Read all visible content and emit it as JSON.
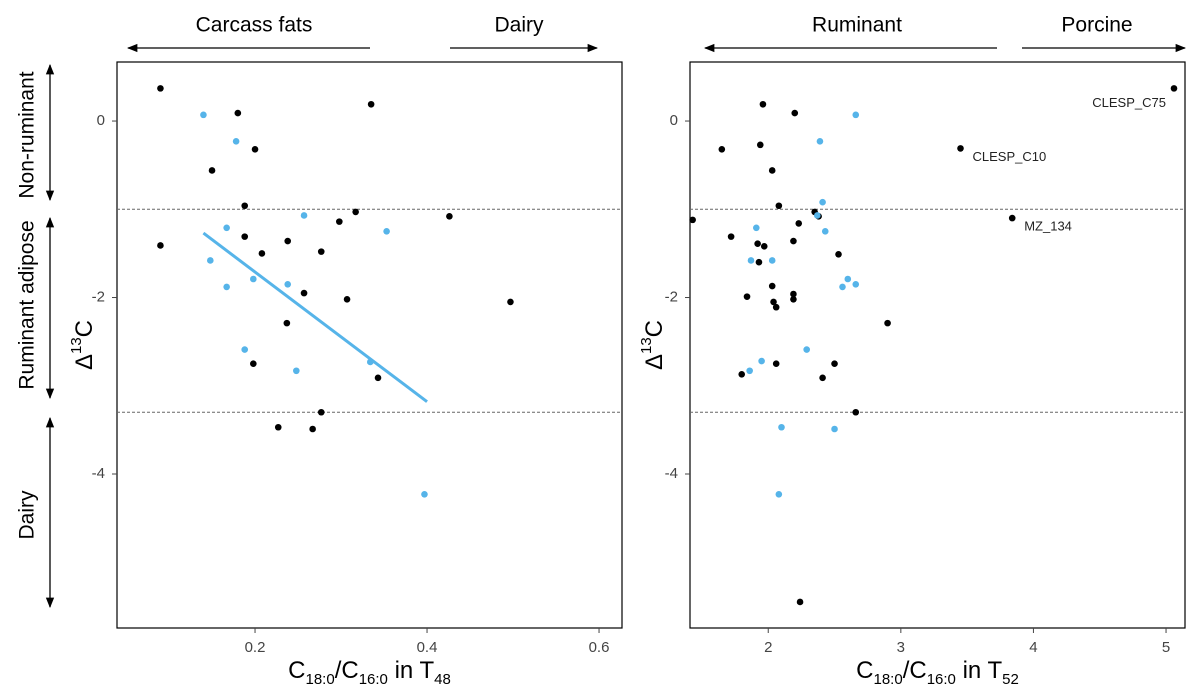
{
  "chart_data": [
    {
      "type": "scatter",
      "x_label": [
        "C",
        "18:0",
        "/C",
        "16:0",
        " in T",
        "48"
      ],
      "y_label": [
        "Δ",
        "13",
        "C"
      ],
      "top_regions": [
        "Carcass fats",
        "Dairy"
      ],
      "side_regions": [
        "Non-ruminant",
        "Ruminant adipose",
        "Dairy"
      ],
      "xlim": [
        0.0395,
        0.6267
      ],
      "ylim": [
        -5.745,
        0.669
      ],
      "xticks": [
        0.2,
        0.4,
        0.6
      ],
      "yticks": [
        0,
        -2,
        -4
      ],
      "hlines": [
        -1,
        -3.3
      ],
      "series": [
        {
          "color": "#000000",
          "x": [
            0.09,
            0.18,
            0.2,
            0.15,
            0.335,
            0.188,
            0.09,
            0.188,
            0.238,
            0.208,
            0.277,
            0.298,
            0.317,
            0.426,
            0.257,
            0.307,
            0.497,
            0.237,
            0.198,
            0.343,
            0.277,
            0.227,
            0.267
          ],
          "values": [
            0.37,
            0.09,
            -0.32,
            -0.56,
            0.19,
            -0.96,
            -1.41,
            -1.31,
            -1.36,
            -1.5,
            -1.48,
            -1.14,
            -1.03,
            -1.08,
            -1.95,
            -2.02,
            -2.05,
            -2.29,
            -2.75,
            -2.91,
            -3.3,
            -3.47,
            -3.49
          ]
        },
        {
          "color": "#56b4e9",
          "x": [
            0.14,
            0.178,
            0.257,
            0.167,
            0.353,
            0.148,
            0.167,
            0.198,
            0.238,
            0.188,
            0.248,
            0.334,
            0.397
          ],
          "values": [
            0.07,
            -0.23,
            -1.07,
            -1.21,
            -1.25,
            -1.58,
            -1.88,
            -1.79,
            -1.85,
            -2.59,
            -2.83,
            -2.73,
            -4.23
          ]
        }
      ],
      "fit": {
        "color": "#56b4e9",
        "x": [
          0.14,
          0.4
        ],
        "values": [
          -1.27,
          -3.18
        ]
      }
    },
    {
      "type": "scatter",
      "x_label": [
        "C",
        "18:0",
        "/C",
        "16:0",
        " in T",
        "52"
      ],
      "y_label": [
        "Δ",
        "13",
        "C"
      ],
      "top_regions": [
        "Ruminant",
        "Porcine"
      ],
      "xlim": [
        1.41,
        5.143
      ],
      "ylim": [
        -5.745,
        0.669
      ],
      "xticks": [
        2,
        3,
        4,
        5
      ],
      "yticks": [
        0,
        -2,
        -4
      ],
      "hlines": [
        -1,
        -3.3
      ],
      "series": [
        {
          "color": "#000000",
          "x": [
            5.06,
            3.45,
            3.84,
            1.96,
            2.2,
            1.94,
            1.65,
            2.03,
            1.43,
            2.08,
            1.72,
            1.92,
            1.97,
            2.19,
            2.23,
            2.35,
            2.38,
            2.53,
            1.93,
            1.84,
            2.03,
            2.04,
            2.06,
            2.19,
            2.19,
            2.9,
            2.06,
            2.5,
            1.8,
            2.41,
            2.66,
            2.24
          ],
          "values": [
            0.37,
            -0.31,
            -1.1,
            0.19,
            0.09,
            -0.27,
            -0.32,
            -0.56,
            -1.12,
            -0.96,
            -1.31,
            -1.39,
            -1.42,
            -1.36,
            -1.16,
            -1.03,
            -1.08,
            -1.51,
            -1.6,
            -1.99,
            -1.87,
            -2.05,
            -2.11,
            -1.96,
            -2.02,
            -2.29,
            -2.75,
            -2.75,
            -2.87,
            -2.91,
            -3.3,
            -5.45
          ],
          "point_labels": [
            "CLESP_C75",
            "CLESP_C10",
            "MZ_134",
            null,
            null,
            null,
            null,
            null,
            null,
            null,
            null,
            null,
            null,
            null,
            null,
            null,
            null,
            null,
            null,
            null,
            null,
            null,
            null,
            null,
            null,
            null,
            null,
            null,
            null,
            null,
            null,
            null
          ]
        },
        {
          "color": "#56b4e9",
          "x": [
            2.66,
            2.39,
            2.41,
            2.37,
            1.91,
            2.43,
            2.03,
            1.87,
            2.6,
            2.66,
            2.56,
            2.29,
            1.95,
            1.86,
            2.1,
            2.5,
            2.08
          ],
          "values": [
            0.07,
            -0.23,
            -0.92,
            -1.07,
            -1.21,
            -1.25,
            -1.58,
            -1.58,
            -1.79,
            -1.85,
            -1.88,
            -2.59,
            -2.72,
            -2.83,
            -3.47,
            -3.49,
            -4.23
          ]
        }
      ]
    }
  ]
}
